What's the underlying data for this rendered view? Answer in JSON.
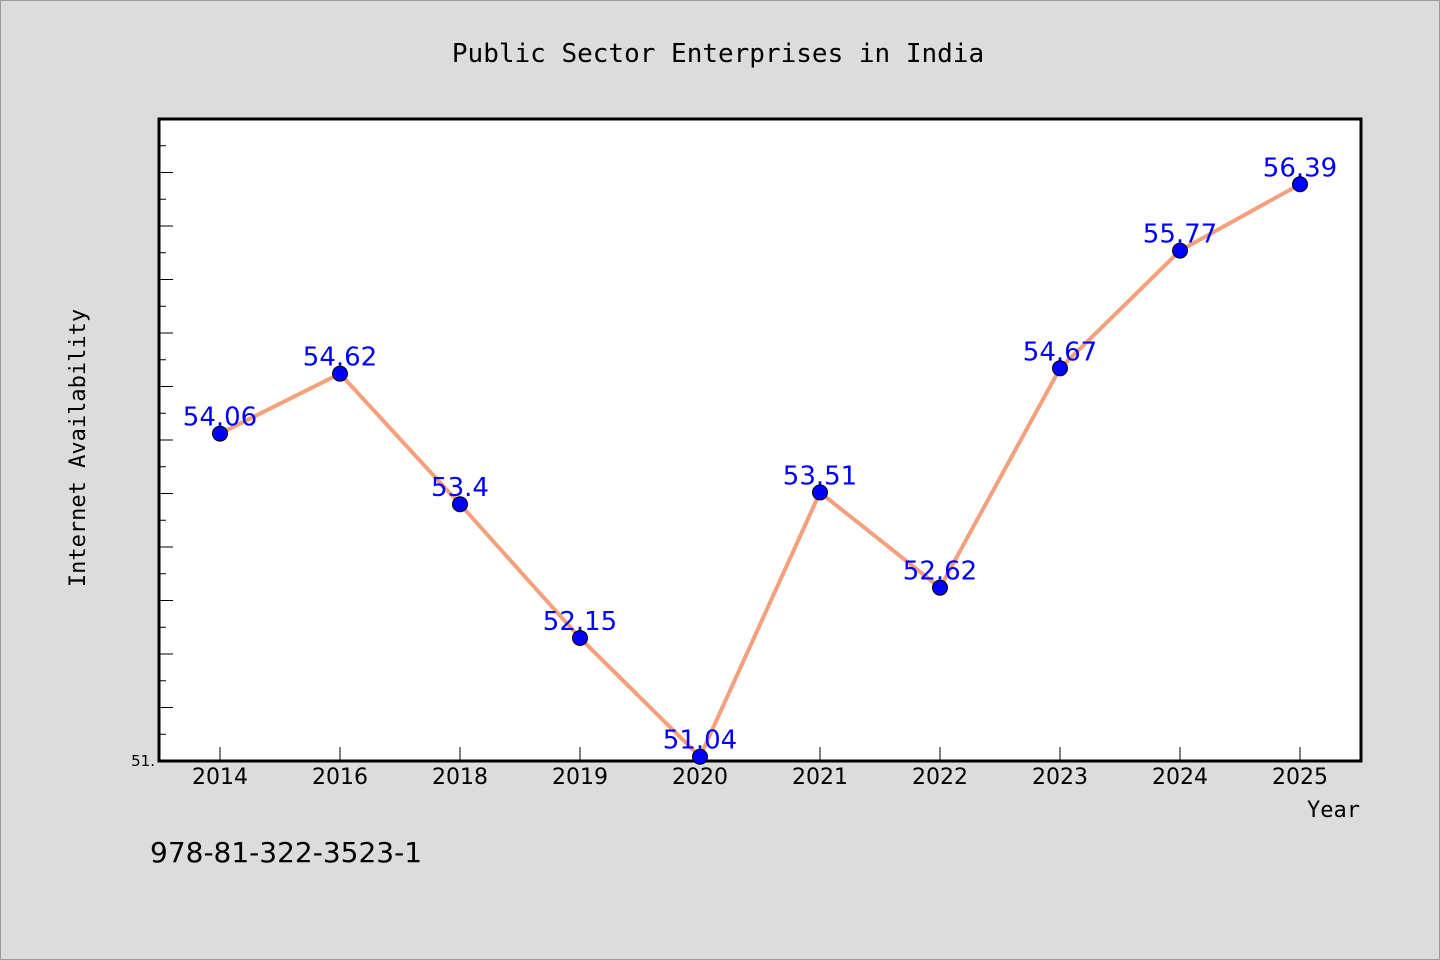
{
  "chart_data": {
    "type": "line",
    "title": "Public Sector Enterprises in India",
    "xlabel": "Year",
    "ylabel": "Internet Availability",
    "categories": [
      "2014",
      "2016",
      "2018",
      "2019",
      "2020",
      "2021",
      "2022",
      "2023",
      "2024",
      "2025"
    ],
    "series": [
      {
        "values": [
          54.06,
          54.62,
          53.4,
          52.15,
          51.04,
          53.51,
          52.62,
          54.67,
          55.77,
          56.39
        ],
        "data_labels": [
          "54.06",
          "54.62",
          "53.4",
          "52.15",
          "51.04",
          "53.51",
          "52.62",
          "54.67",
          "55.77",
          "56.39"
        ]
      }
    ],
    "ylim": [
      51.0,
      57.0
    ],
    "ytick_labels": [
      "51."
    ],
    "grid": false,
    "colors": {
      "line": "#f4a07c",
      "marker": "#0000ff",
      "data_label": "#0000ff",
      "background": "#dcdcdc",
      "plot_background": "#ffffff"
    }
  },
  "footer_text": "978-81-322-3523-1"
}
